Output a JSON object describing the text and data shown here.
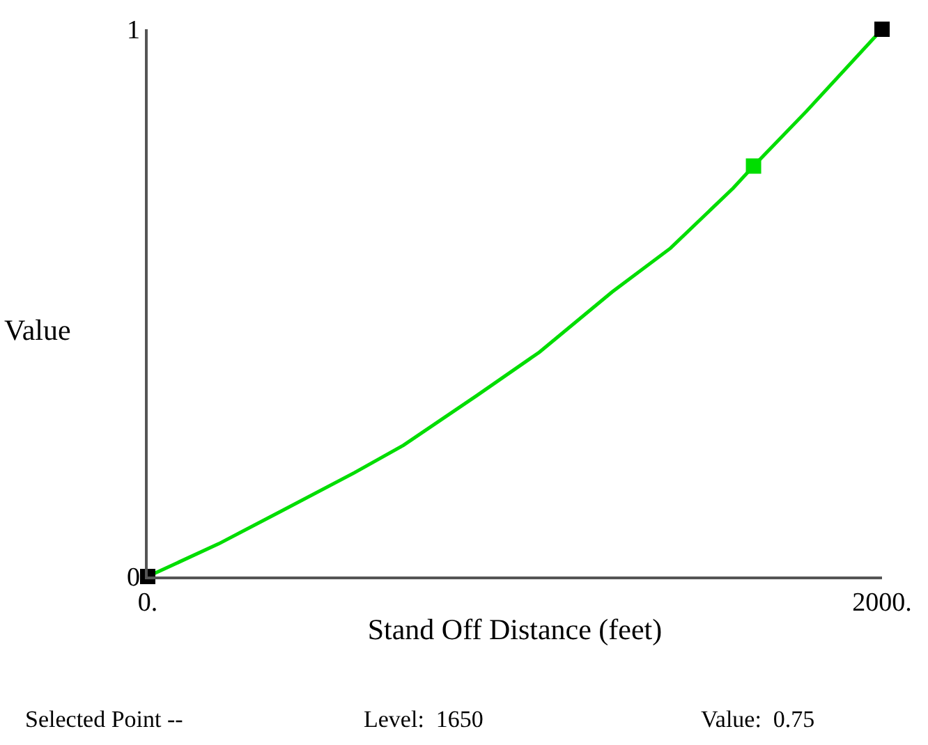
{
  "chart_data": {
    "type": "line",
    "xlabel": "Stand Off Distance (feet)",
    "ylabel": "Value",
    "xlim": [
      0,
      2000
    ],
    "ylim": [
      0,
      1
    ],
    "xticks": [
      {
        "value": 0,
        "label": "0."
      },
      {
        "value": 2000,
        "label": "2000."
      }
    ],
    "yticks": [
      {
        "value": 0,
        "label": "0"
      },
      {
        "value": 1,
        "label": "1"
      }
    ],
    "series": [
      {
        "color": "#00dd00",
        "marker": "none",
        "x": [
          0,
          194,
          365,
          564,
          697,
          895,
          1067,
          1265,
          1424,
          1595,
          1650,
          1794,
          2000
        ],
        "values": [
          0,
          0.06,
          0.12,
          0.19,
          0.24,
          0.33,
          0.41,
          0.52,
          0.6,
          0.71,
          0.75,
          0.85,
          1
        ]
      },
      {
        "type": "scatter",
        "marker": "square",
        "color": "#000000",
        "x": [
          0,
          1650,
          2000
        ],
        "values": [
          0,
          0.75,
          1
        ],
        "colors": [
          "#000000",
          "#00dd00",
          "#000000"
        ]
      }
    ],
    "annotations": [
      "Selected Point --",
      "Level:  1650",
      "Value:  0.75"
    ]
  }
}
